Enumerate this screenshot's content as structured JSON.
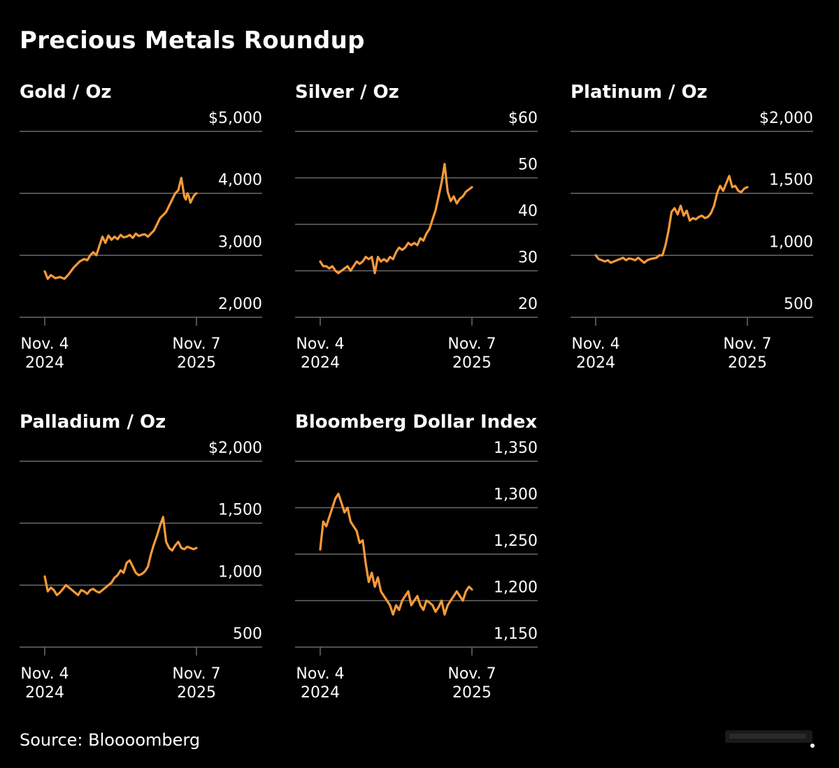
{
  "page": {
    "title": "Precious Metals Roundup",
    "source": "Source: Bloooomberg"
  },
  "colors": {
    "background": "#000000",
    "line": "#f79a3a",
    "gridline": "#6b6b6b",
    "text": "#ffffff"
  },
  "chart_data": [
    {
      "type": "line",
      "title": "Gold / Oz",
      "ylim": [
        2000,
        5000
      ],
      "yticks": [
        {
          "value": 5000,
          "label": "$5,000"
        },
        {
          "value": 4000,
          "label": "4,000"
        },
        {
          "value": 3000,
          "label": "3,000"
        },
        {
          "value": 2000,
          "label": "2,000"
        }
      ],
      "xticks": [
        {
          "pos": 0,
          "label": [
            "Nov. 4",
            "2024"
          ]
        },
        {
          "pos": 1,
          "label": [
            "Nov. 7",
            "2025"
          ]
        }
      ],
      "x": [
        0,
        0.02,
        0.04,
        0.07,
        0.1,
        0.13,
        0.16,
        0.19,
        0.23,
        0.26,
        0.28,
        0.3,
        0.32,
        0.34,
        0.36,
        0.38,
        0.4,
        0.42,
        0.44,
        0.46,
        0.48,
        0.5,
        0.52,
        0.54,
        0.56,
        0.58,
        0.6,
        0.62,
        0.64,
        0.66,
        0.68,
        0.7,
        0.72,
        0.74,
        0.76,
        0.78,
        0.8,
        0.82,
        0.84,
        0.86,
        0.88,
        0.9,
        0.92,
        0.93,
        0.94,
        0.95,
        0.96,
        0.97,
        0.98,
        0.99,
        1.0
      ],
      "values": [
        2740,
        2620,
        2680,
        2630,
        2650,
        2620,
        2700,
        2800,
        2900,
        2940,
        2920,
        3000,
        3050,
        3000,
        3150,
        3300,
        3200,
        3320,
        3250,
        3300,
        3260,
        3330,
        3290,
        3300,
        3330,
        3280,
        3350,
        3310,
        3330,
        3340,
        3300,
        3350,
        3400,
        3500,
        3600,
        3650,
        3700,
        3800,
        3900,
        4000,
        4050,
        4250,
        3950,
        3900,
        4000,
        3950,
        3850,
        3900,
        3950,
        3980,
        4000
      ]
    },
    {
      "type": "line",
      "title": "Silver / Oz",
      "ylim": [
        20,
        60
      ],
      "yticks": [
        {
          "value": 60,
          "label": "$60"
        },
        {
          "value": 50,
          "label": "50"
        },
        {
          "value": 40,
          "label": "40"
        },
        {
          "value": 30,
          "label": "30"
        },
        {
          "value": 20,
          "label": "20"
        }
      ],
      "xticks": [
        {
          "pos": 0,
          "label": [
            "Nov. 4",
            "2024"
          ]
        },
        {
          "pos": 1,
          "label": [
            "Nov. 7",
            "2025"
          ]
        }
      ],
      "x": [
        0,
        0.02,
        0.04,
        0.06,
        0.08,
        0.1,
        0.12,
        0.14,
        0.16,
        0.18,
        0.2,
        0.22,
        0.24,
        0.26,
        0.28,
        0.3,
        0.32,
        0.34,
        0.36,
        0.38,
        0.4,
        0.42,
        0.44,
        0.46,
        0.48,
        0.5,
        0.52,
        0.54,
        0.56,
        0.58,
        0.6,
        0.62,
        0.64,
        0.66,
        0.68,
        0.7,
        0.72,
        0.74,
        0.76,
        0.78,
        0.8,
        0.82,
        0.84,
        0.86,
        0.88,
        0.9,
        0.92,
        0.94,
        0.96,
        0.98,
        1.0
      ],
      "values": [
        32,
        31,
        31,
        30.5,
        31,
        30,
        29.5,
        30,
        30.5,
        31,
        30,
        31,
        32,
        31.5,
        32,
        33,
        32.5,
        33,
        29.5,
        33,
        32,
        32.5,
        32,
        33,
        32.5,
        34,
        35,
        34.5,
        35,
        36,
        35.5,
        36,
        35.5,
        37,
        36.5,
        38,
        39,
        41,
        43,
        46,
        49,
        53,
        47,
        45,
        46,
        44.5,
        45.5,
        46,
        47,
        47.5,
        48
      ]
    },
    {
      "type": "line",
      "title": "Platinum / Oz",
      "ylim": [
        500,
        2000
      ],
      "yticks": [
        {
          "value": 2000,
          "label": "$2,000"
        },
        {
          "value": 1500,
          "label": "1,500"
        },
        {
          "value": 1000,
          "label": "1,000"
        },
        {
          "value": 500,
          "label": "500"
        }
      ],
      "xticks": [
        {
          "pos": 0,
          "label": [
            "Nov. 4",
            "2024"
          ]
        },
        {
          "pos": 1,
          "label": [
            "Nov. 7",
            "2025"
          ]
        }
      ],
      "x": [
        0,
        0.02,
        0.04,
        0.06,
        0.08,
        0.1,
        0.12,
        0.14,
        0.16,
        0.18,
        0.2,
        0.22,
        0.24,
        0.26,
        0.28,
        0.3,
        0.32,
        0.34,
        0.36,
        0.38,
        0.4,
        0.42,
        0.44,
        0.46,
        0.48,
        0.5,
        0.52,
        0.54,
        0.56,
        0.58,
        0.6,
        0.62,
        0.64,
        0.66,
        0.68,
        0.7,
        0.72,
        0.74,
        0.76,
        0.78,
        0.8,
        0.82,
        0.84,
        0.86,
        0.88,
        0.9,
        0.92,
        0.94,
        0.96,
        0.98,
        1.0
      ],
      "values": [
        1000,
        970,
        960,
        950,
        960,
        940,
        950,
        960,
        970,
        980,
        960,
        975,
        970,
        960,
        980,
        960,
        940,
        960,
        970,
        975,
        980,
        1000,
        1000,
        1080,
        1200,
        1350,
        1380,
        1330,
        1400,
        1320,
        1360,
        1280,
        1300,
        1290,
        1310,
        1320,
        1300,
        1310,
        1340,
        1400,
        1500,
        1560,
        1520,
        1580,
        1640,
        1550,
        1560,
        1520,
        1510,
        1540,
        1550
      ]
    },
    {
      "type": "line",
      "title": "Palladium / Oz",
      "ylim": [
        500,
        2000
      ],
      "yticks": [
        {
          "value": 2000,
          "label": "$2,000"
        },
        {
          "value": 1500,
          "label": "1,500"
        },
        {
          "value": 1000,
          "label": "1,000"
        },
        {
          "value": 500,
          "label": "500"
        }
      ],
      "xticks": [
        {
          "pos": 0,
          "label": [
            "Nov. 4",
            "2024"
          ]
        },
        {
          "pos": 1,
          "label": [
            "Nov. 7",
            "2025"
          ]
        }
      ],
      "x": [
        0,
        0.02,
        0.04,
        0.06,
        0.08,
        0.1,
        0.12,
        0.14,
        0.16,
        0.18,
        0.2,
        0.22,
        0.24,
        0.26,
        0.28,
        0.3,
        0.32,
        0.34,
        0.36,
        0.38,
        0.4,
        0.42,
        0.44,
        0.46,
        0.48,
        0.5,
        0.52,
        0.54,
        0.56,
        0.58,
        0.6,
        0.62,
        0.64,
        0.66,
        0.68,
        0.7,
        0.72,
        0.74,
        0.76,
        0.78,
        0.8,
        0.82,
        0.84,
        0.86,
        0.88,
        0.9,
        0.92,
        0.94,
        0.96,
        0.98,
        1.0
      ],
      "values": [
        1070,
        950,
        980,
        960,
        920,
        940,
        970,
        1000,
        980,
        960,
        940,
        920,
        960,
        950,
        930,
        960,
        970,
        950,
        940,
        960,
        980,
        1000,
        1020,
        1060,
        1080,
        1120,
        1100,
        1180,
        1200,
        1150,
        1100,
        1080,
        1090,
        1110,
        1150,
        1250,
        1330,
        1400,
        1480,
        1550,
        1350,
        1300,
        1280,
        1320,
        1350,
        1300,
        1290,
        1310,
        1300,
        1290,
        1300
      ]
    },
    {
      "type": "line",
      "title": "Bloomberg Dollar Index",
      "ylim": [
        1150,
        1350
      ],
      "yticks": [
        {
          "value": 1350,
          "label": "1,350"
        },
        {
          "value": 1300,
          "label": "1,300"
        },
        {
          "value": 1250,
          "label": "1,250"
        },
        {
          "value": 1200,
          "label": "1,200"
        },
        {
          "value": 1150,
          "label": "1,150"
        }
      ],
      "xticks": [
        {
          "pos": 0,
          "label": [
            "Nov. 4",
            "2024"
          ]
        },
        {
          "pos": 1,
          "label": [
            "Nov. 7",
            "2025"
          ]
        }
      ],
      "x": [
        0,
        0.02,
        0.04,
        0.06,
        0.08,
        0.1,
        0.12,
        0.14,
        0.16,
        0.18,
        0.2,
        0.22,
        0.24,
        0.26,
        0.28,
        0.3,
        0.32,
        0.34,
        0.36,
        0.38,
        0.4,
        0.42,
        0.44,
        0.46,
        0.48,
        0.5,
        0.52,
        0.54,
        0.56,
        0.58,
        0.6,
        0.62,
        0.64,
        0.66,
        0.68,
        0.7,
        0.72,
        0.74,
        0.76,
        0.78,
        0.8,
        0.82,
        0.84,
        0.86,
        0.88,
        0.9,
        0.92,
        0.94,
        0.96,
        0.98,
        1.0
      ],
      "values": [
        1255,
        1285,
        1280,
        1290,
        1300,
        1310,
        1315,
        1305,
        1295,
        1300,
        1285,
        1280,
        1275,
        1262,
        1265,
        1240,
        1220,
        1230,
        1215,
        1225,
        1210,
        1205,
        1200,
        1195,
        1185,
        1195,
        1190,
        1200,
        1205,
        1210,
        1195,
        1200,
        1205,
        1195,
        1190,
        1200,
        1198,
        1195,
        1188,
        1193,
        1200,
        1185,
        1195,
        1200,
        1205,
        1210,
        1205,
        1200,
        1210,
        1215,
        1212
      ]
    }
  ]
}
